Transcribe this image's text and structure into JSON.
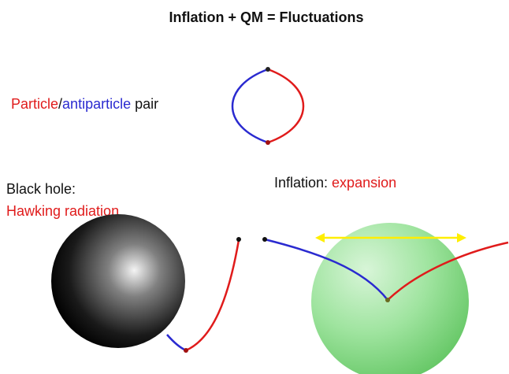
{
  "title": "Inflation + QM = Fluctuations",
  "pair_label": {
    "particle": "Particle",
    "separator": "/",
    "antiparticle": "antiparticle",
    "suffix": "pair"
  },
  "black_hole": {
    "label": "Black hole:",
    "effect": "Hawking radiation"
  },
  "inflation": {
    "label": "Inflation:",
    "effect": "expansion"
  }
}
